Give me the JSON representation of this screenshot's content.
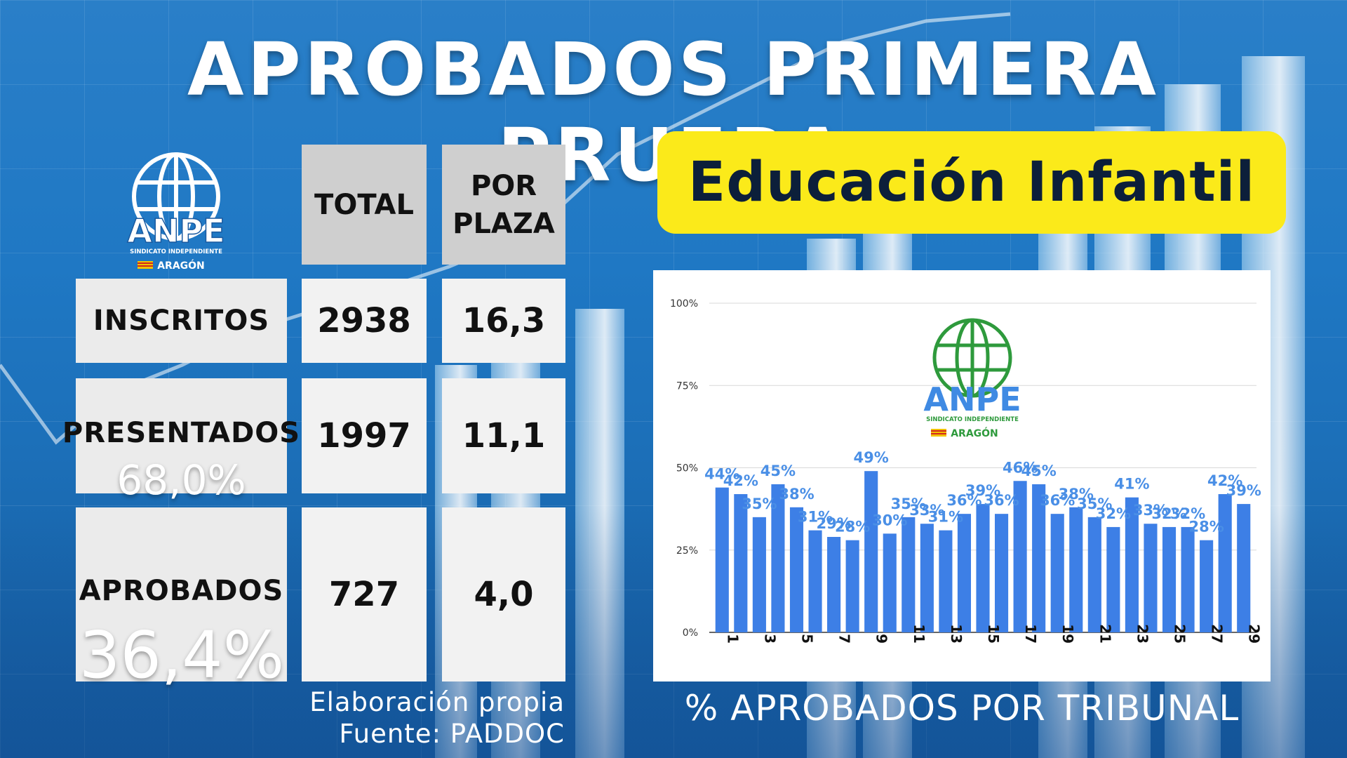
{
  "title": "APROBADOS PRIMERA PRUEBA",
  "subtitle": "Educación Infantil",
  "logo": {
    "name": "ANPE",
    "tagline": "SINDICATO INDEPENDIENTE",
    "region": "ARAGÓN"
  },
  "table": {
    "headers": {
      "total": "TOTAL",
      "por_plaza_line1": "POR",
      "por_plaza_line2": "PLAZA"
    },
    "rows": [
      {
        "label": "INSCRITOS",
        "total": "2938",
        "per_plaza": "16,3",
        "pct": ""
      },
      {
        "label": "PRESENTADOS",
        "total": "1997",
        "per_plaza": "11,1",
        "pct": "68,0%"
      },
      {
        "label": "APROBADOS",
        "total": "727",
        "per_plaza": "4,0",
        "pct": "36,4%"
      }
    ]
  },
  "source": {
    "line1": "Elaboración propia",
    "line2": "Fuente: PADDOC"
  },
  "chart_caption": "% APROBADOS POR TRIBUNAL",
  "colors": {
    "bar": "#3d7fe6",
    "label": "#4a8fe6",
    "subtitle_bg": "#fbea1a",
    "logo_chart": "#2e9a3c"
  },
  "chart_data": {
    "type": "bar",
    "categories": [
      "1",
      "2",
      "3",
      "4",
      "5",
      "6",
      "7",
      "8",
      "9",
      "10",
      "11",
      "12",
      "13",
      "14",
      "15",
      "16",
      "17",
      "18",
      "19",
      "20",
      "21",
      "22",
      "23",
      "24",
      "25",
      "26",
      "27",
      "28",
      "29"
    ],
    "x_tick_labels": [
      "1",
      "3",
      "5",
      "7",
      "9",
      "11",
      "13",
      "15",
      "17",
      "19",
      "21",
      "23",
      "25",
      "27",
      "29"
    ],
    "values": [
      44,
      42,
      35,
      45,
      38,
      31,
      29,
      28,
      49,
      30,
      35,
      33,
      31,
      36,
      39,
      36,
      46,
      45,
      36,
      38,
      35,
      32,
      41,
      33,
      32,
      32,
      28,
      42,
      39
    ],
    "data_labels": [
      "44%",
      "42%",
      "35%",
      "45%",
      "38%",
      "31%",
      "29%",
      "28%",
      "49%",
      "30%",
      "35%",
      "33%",
      "31%",
      "36%",
      "39%",
      "36%",
      "46%",
      "45%",
      "36%",
      "38%",
      "35%",
      "32%",
      "41%",
      "33%",
      "32%",
      "32%",
      "28%",
      "42%",
      "39%"
    ],
    "y_ticks": [
      "0%",
      "25%",
      "50%",
      "75%",
      "100%"
    ],
    "ylim": [
      0,
      100
    ],
    "grid": true,
    "title": "% APROBADOS POR TRIBUNAL"
  }
}
